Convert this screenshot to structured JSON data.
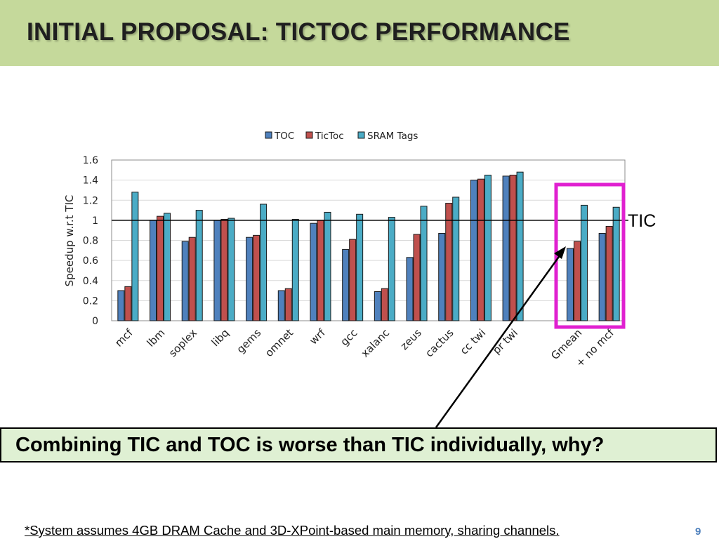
{
  "slide": {
    "title": "INITIAL PROPOSAL: TICTOC PERFORMANCE",
    "callout": "Combining TIC and TOC is worse than TIC individually, why?",
    "footnote": "*System assumes 4GB DRAM Cache and 3D-XPoint-based main memory, sharing channels.",
    "page_number": "9"
  },
  "colors": {
    "header_bg": "#c5d99b",
    "toc": "#4f81bd",
    "tictoc": "#c0504d",
    "sram_tags": "#4bacc6",
    "highlight_box": "#e020d0",
    "callout_bg": "#dff0d3"
  },
  "chart_data": {
    "type": "bar",
    "xlabel": "",
    "ylabel": "Speedup w.r.t TIC",
    "ylim": [
      0,
      1.6
    ],
    "yticks": [
      "0",
      "0.2",
      "0.4",
      "0.6",
      "0.8",
      "1",
      "1.2",
      "1.4",
      "1.6"
    ],
    "legend_position": "top-center",
    "grid": true,
    "reference_line": {
      "value": 1,
      "label": "TIC"
    },
    "categories": [
      "mcf",
      "lbm",
      "soplex",
      "libq",
      "gems",
      "omnet",
      "wrf",
      "gcc",
      "xalanc",
      "zeus",
      "cactus",
      "cc twi",
      "pr twi",
      "",
      "Gmean",
      "+ no mcf"
    ],
    "series": [
      {
        "name": "TOC",
        "values": [
          0.3,
          1.0,
          0.79,
          1.0,
          0.83,
          0.3,
          0.97,
          0.71,
          0.29,
          0.63,
          0.87,
          1.4,
          1.44,
          null,
          0.72,
          0.87
        ]
      },
      {
        "name": "TicToc",
        "values": [
          0.34,
          1.04,
          0.83,
          1.01,
          0.85,
          0.32,
          1.0,
          0.81,
          0.32,
          0.86,
          1.17,
          1.41,
          1.45,
          null,
          0.79,
          0.94
        ]
      },
      {
        "name": "SRAM Tags",
        "values": [
          1.28,
          1.07,
          1.1,
          1.02,
          1.16,
          1.01,
          1.08,
          1.06,
          1.03,
          1.14,
          1.23,
          1.45,
          1.48,
          null,
          1.15,
          1.13
        ]
      }
    ],
    "highlighted_categories": [
      "Gmean",
      "+ no mcf"
    ]
  }
}
